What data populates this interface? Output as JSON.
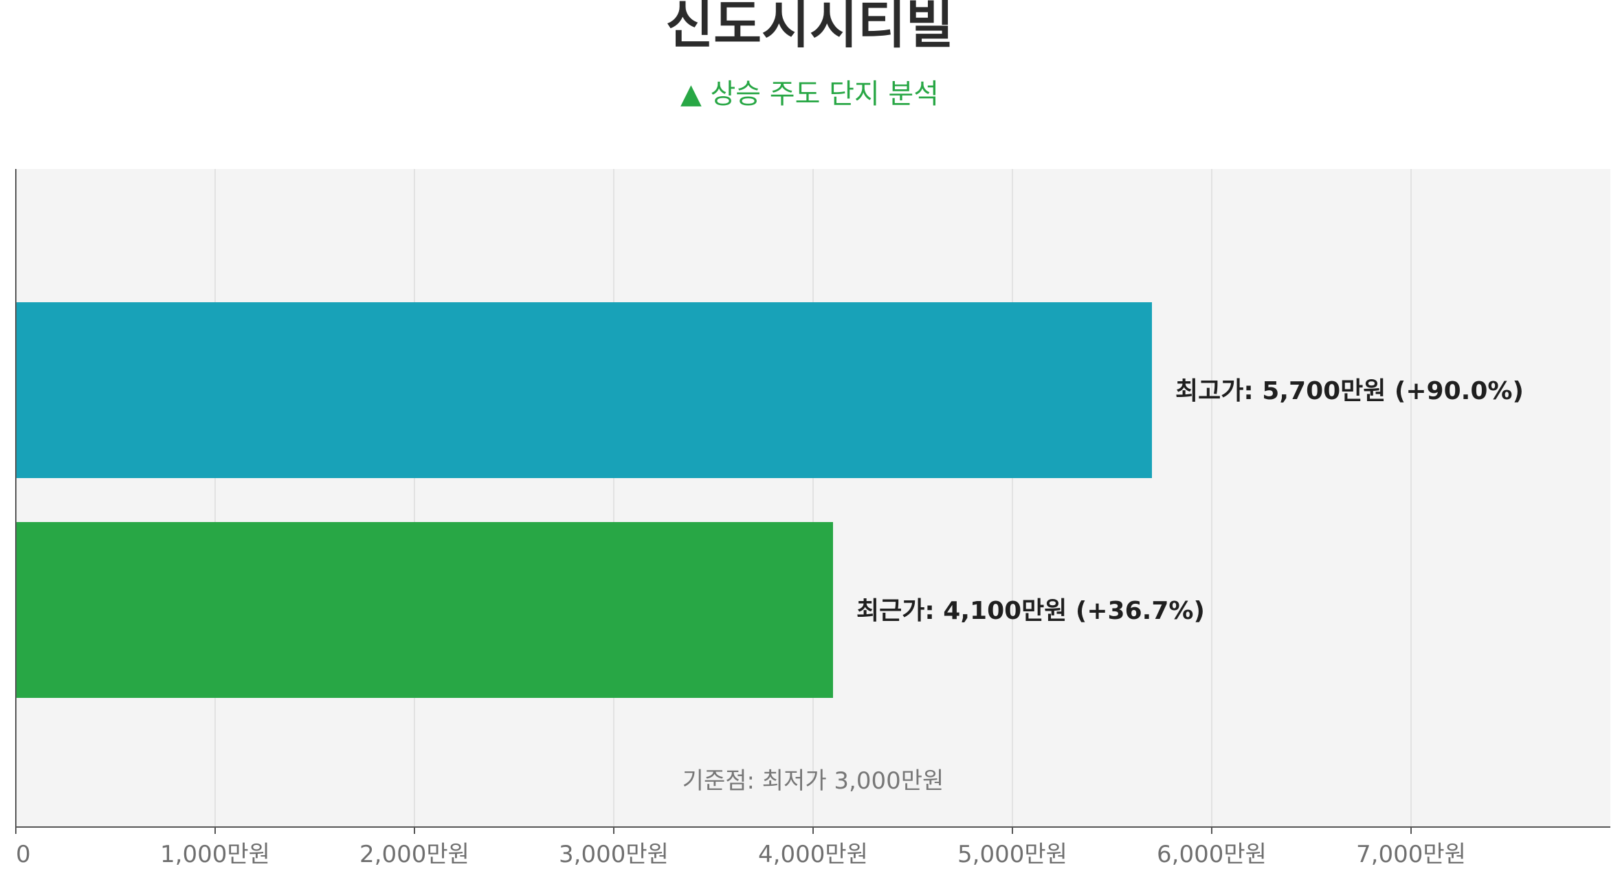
{
  "chart_data": {
    "type": "bar",
    "orientation": "horizontal",
    "title": "신도시시티빌",
    "subtitle": "▲ 상승 주도 단지 분석",
    "bars": [
      {
        "label": "최고가: 5,700만원  (+90.0%)",
        "value": 5700,
        "color": "#18a2b8"
      },
      {
        "label": "최근가: 4,100만원  (+36.7%)",
        "value": 4100,
        "color": "#28a745"
      }
    ],
    "x_ticks": [
      {
        "value": 0,
        "label": "0"
      },
      {
        "value": 1000,
        "label": "1,000만원"
      },
      {
        "value": 2000,
        "label": "2,000만원"
      },
      {
        "value": 3000,
        "label": "3,000만원"
      },
      {
        "value": 4000,
        "label": "4,000만원"
      },
      {
        "value": 5000,
        "label": "5,000만원"
      },
      {
        "value": 6000,
        "label": "6,000만원"
      },
      {
        "value": 7000,
        "label": "7,000만원"
      }
    ],
    "xlim": [
      0,
      8000
    ],
    "annotation": "기준점: 최저가 3,000만원",
    "grid": true,
    "plot_background": "#f4f4f4",
    "grid_color": "#e2e2e2"
  }
}
